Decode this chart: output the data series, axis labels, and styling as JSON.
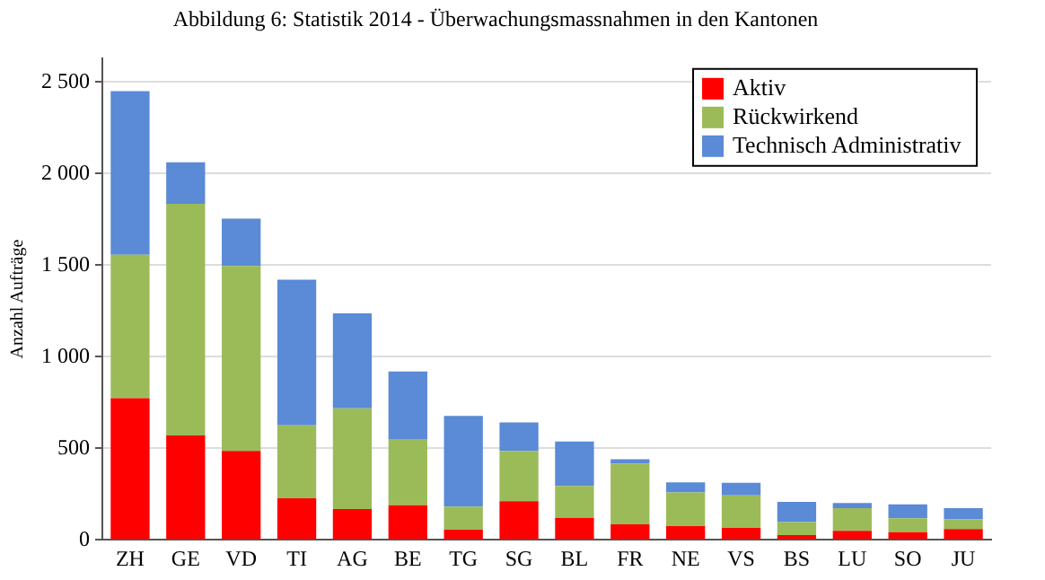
{
  "chart_data": {
    "type": "bar",
    "title": "Abbildung 6: Statistik 2014 - Überwachungsmassnahmen in den Kantonen",
    "ylabel": "Anzahl Aufträge",
    "stacked": true,
    "categories": [
      "ZH",
      "GE",
      "VD",
      "TI",
      "AG",
      "BE",
      "TG",
      "SG",
      "BL",
      "FR",
      "NE",
      "VS",
      "BS",
      "LU",
      "SO",
      "JU"
    ],
    "series": [
      {
        "name": "Aktiv",
        "color": "#ff0000",
        "values": [
          773,
          570,
          485,
          227,
          168,
          188,
          55,
          210,
          120,
          84,
          74,
          65,
          26,
          49,
          42,
          58
        ]
      },
      {
        "name": "Rückwirkend",
        "color": "#9bbb59",
        "values": [
          784,
          1265,
          1010,
          398,
          550,
          362,
          126,
          275,
          174,
          333,
          185,
          178,
          71,
          123,
          75,
          55
        ]
      },
      {
        "name": "Technisch Administrativ",
        "color": "#5b8ad6",
        "values": [
          893,
          226,
          259,
          796,
          518,
          369,
          495,
          156,
          243,
          23,
          55,
          68,
          110,
          29,
          77,
          59
        ]
      }
    ],
    "ylim": [
      0,
      2630
    ],
    "yticks": [
      0,
      500,
      {
        "value": 1000,
        "label": "1 000"
      },
      {
        "value": 1500,
        "label": "1 500"
      },
      {
        "value": 2000,
        "label": "2 000"
      },
      {
        "value": 2500,
        "label": "2 500"
      }
    ],
    "grid": "y",
    "legend": "top right"
  }
}
